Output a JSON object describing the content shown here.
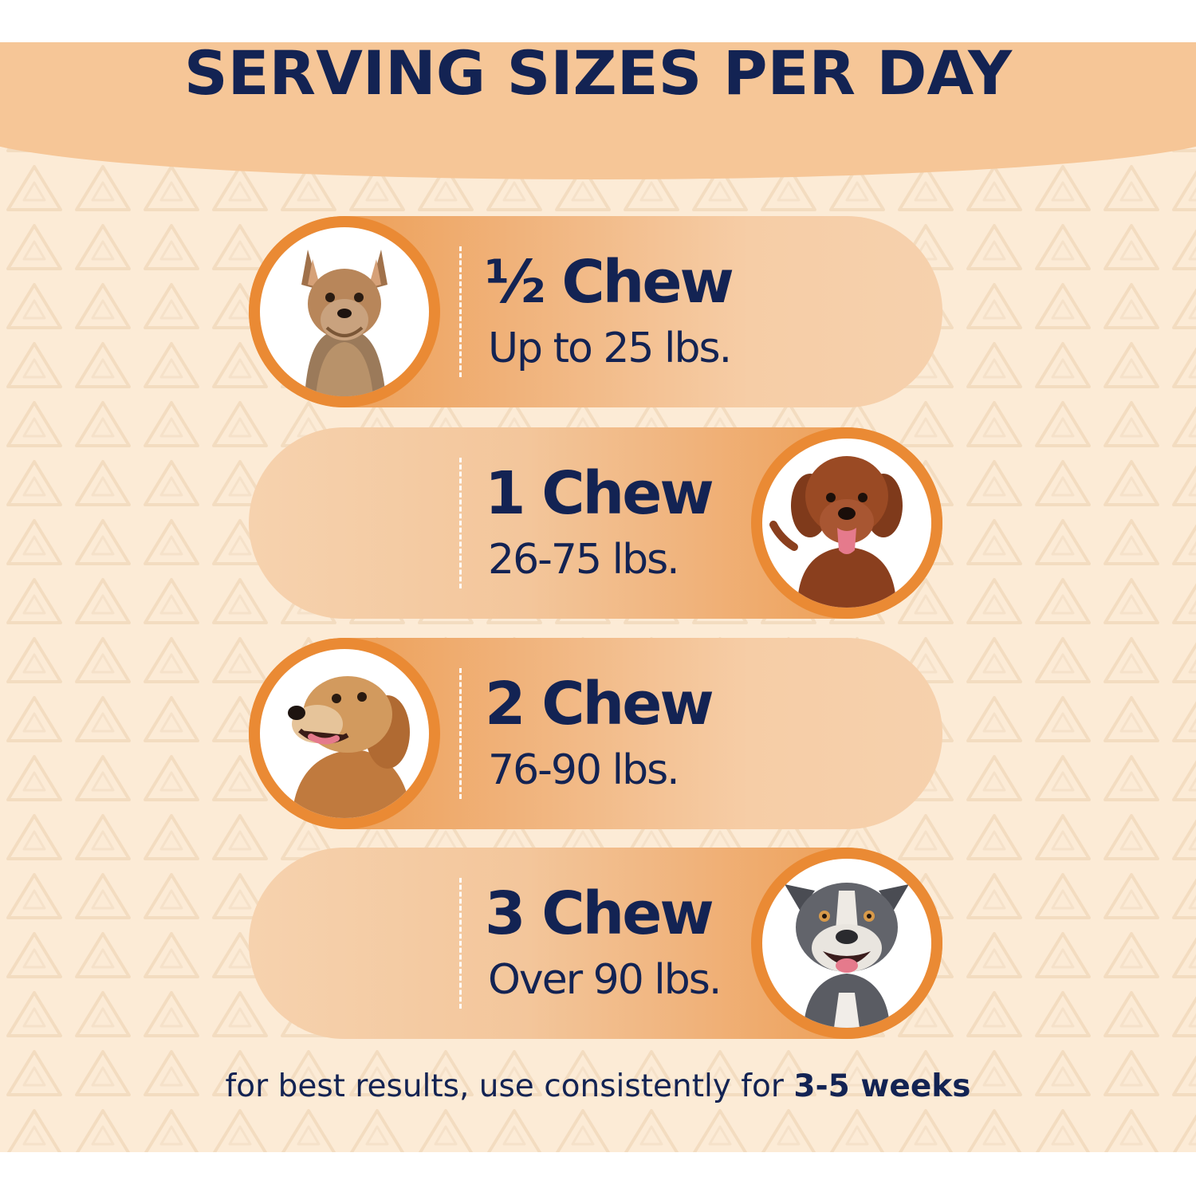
{
  "title": "SERVING SIZES PER DAY",
  "servings": [
    {
      "amount": "½ Chew",
      "weight": "Up to 25 lbs.",
      "dog": "yorkshire-terrier"
    },
    {
      "amount": "1 Chew",
      "weight": "26-75 lbs.",
      "dog": "labradoodle"
    },
    {
      "amount": "2 Chew",
      "weight": "76-90 lbs.",
      "dog": "golden-retriever"
    },
    {
      "amount": "3 Chew",
      "weight": "Over 90 lbs.",
      "dog": "american-bully"
    }
  ],
  "footer": {
    "prefix": "for best results, use consistently for ",
    "emphasis": "3-5 weeks"
  },
  "colors": {
    "navy": "#132353",
    "orange": "#ea8a34",
    "background": "#fcebd6",
    "header": "#f6c697"
  }
}
